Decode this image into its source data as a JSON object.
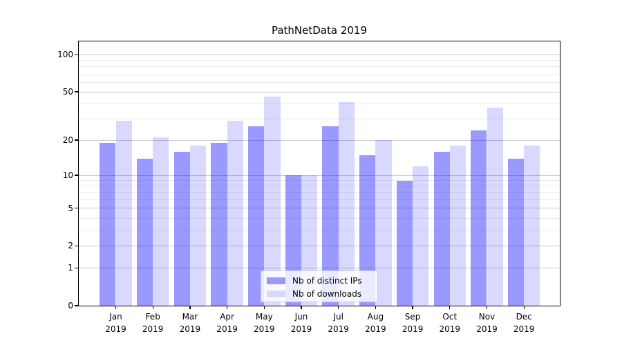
{
  "chart_data": {
    "type": "bar",
    "title": "PathNetData 2019",
    "x": {
      "months": [
        "Jan",
        "Feb",
        "Mar",
        "Apr",
        "May",
        "Jun",
        "Jul",
        "Aug",
        "Sep",
        "Oct",
        "Nov",
        "Dec"
      ],
      "year": "2019"
    },
    "series": [
      {
        "name": "Nb of distinct IPs",
        "color": "rgba(0,0,255,0.4)",
        "values": [
          19,
          14,
          16,
          19,
          26,
          10,
          26,
          15,
          9,
          16,
          24,
          14
        ]
      },
      {
        "name": "Nb of downloads",
        "color": "rgba(0,0,255,0.15)",
        "values": [
          29,
          21,
          18,
          29,
          46,
          10,
          41,
          20,
          12,
          18,
          37,
          18
        ]
      }
    ],
    "yscale": "log1p",
    "ylim": [
      0,
      128
    ],
    "yticks": [
      0,
      1,
      2,
      5,
      10,
      20,
      50,
      100
    ],
    "major_gridlines": [
      1,
      2,
      5,
      10,
      20,
      50,
      100
    ],
    "minor_gridlines": [
      3,
      4,
      6,
      7,
      8,
      9,
      30,
      40,
      60,
      70,
      80,
      90
    ],
    "grid": "on",
    "legend_position": "lower center"
  },
  "colors": {
    "bar_distinct_ips_flat": "#9999ff",
    "bar_downloads_flat": "#d9d9ff",
    "grid_major": "#c9c9c9",
    "grid_minor": "#ebebeb",
    "spine": "#000000",
    "background": "#ffffff"
  }
}
